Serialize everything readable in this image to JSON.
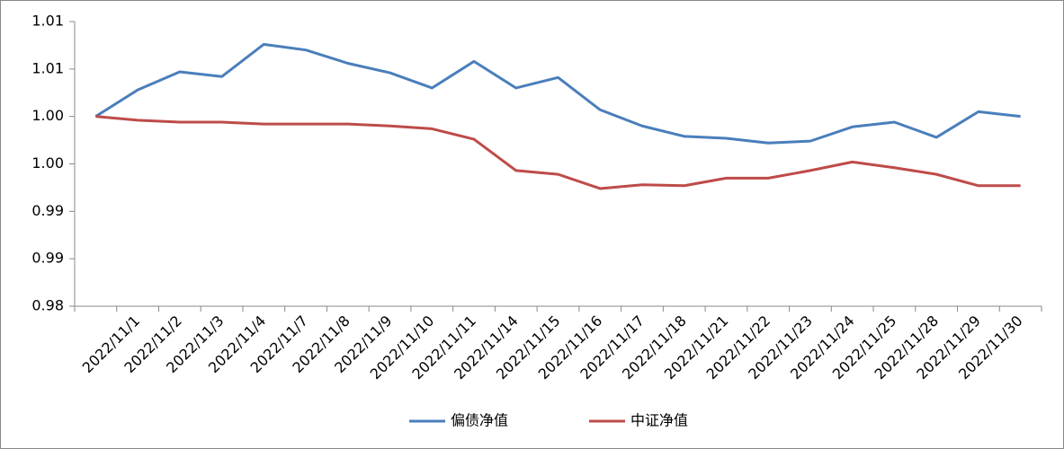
{
  "chart_data": {
    "type": "line",
    "categories": [
      null,
      "2022/11/1",
      "2022/11/2",
      "2022/11/3",
      "2022/11/4",
      "2022/11/7",
      "2022/11/8",
      "2022/11/9",
      "2022/11/10",
      "2022/11/11",
      "2022/11/14",
      "2022/11/15",
      "2022/11/16",
      "2022/11/17",
      "2022/11/18",
      "2022/11/21",
      "2022/11/22",
      "2022/11/23",
      "2022/11/24",
      "2022/11/25",
      "2022/11/28",
      "2022/11/29",
      "2022/11/30"
    ],
    "series": [
      {
        "name": "偏债净值",
        "color": "#4a7ebb",
        "values": [
          1.0,
          1.0028,
          1.0047,
          1.0042,
          1.0076,
          1.007,
          1.0056,
          1.0046,
          1.003,
          1.0058,
          1.003,
          1.0041,
          1.0007,
          0.999,
          0.9979,
          0.9977,
          0.9972,
          0.9974,
          0.9989,
          0.9994,
          0.9978,
          1.0005,
          1.0
        ]
      },
      {
        "name": "中证净值",
        "color": "#be4b48",
        "values": [
          1.0,
          0.9996,
          0.9994,
          0.9994,
          0.9992,
          0.9992,
          0.9992,
          0.999,
          0.9987,
          0.9976,
          0.9943,
          0.9939,
          0.9924,
          0.9928,
          0.9927,
          0.9935,
          0.9935,
          0.9943,
          0.9952,
          0.9946,
          0.9939,
          0.9927,
          0.9927
        ]
      }
    ],
    "ylim": [
      0.98,
      1.01
    ],
    "yticks": [
      {
        "value": 0.98,
        "label": "0.98"
      },
      {
        "value": 0.985,
        "label": "0.99"
      },
      {
        "value": 0.99,
        "label": "0.99"
      },
      {
        "value": 0.995,
        "label": "1.00"
      },
      {
        "value": 1.0,
        "label": "1.00"
      },
      {
        "value": 1.005,
        "label": "1.01"
      },
      {
        "value": 1.01,
        "label": "1.01"
      }
    ],
    "legend": "bottom"
  }
}
